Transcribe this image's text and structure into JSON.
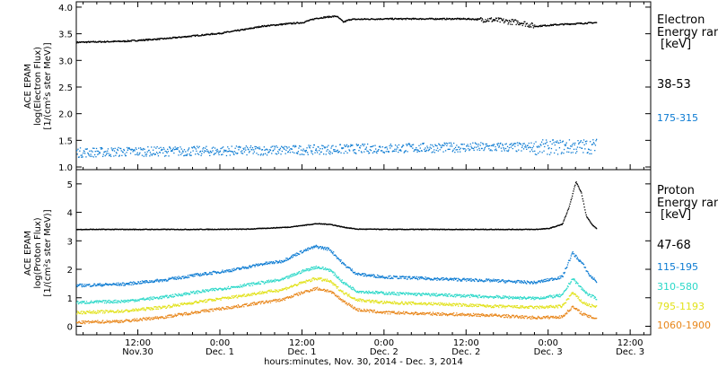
{
  "x_axis": {
    "tick_labels": [
      {
        "time": "12:00",
        "date": "Nov.30",
        "hour": 12
      },
      {
        "time": "0:00",
        "date": "Dec. 1",
        "hour": 24
      },
      {
        "time": "12:00",
        "date": "Dec. 1",
        "hour": 36
      },
      {
        "time": "0:00",
        "date": "Dec. 2",
        "hour": 48
      },
      {
        "time": "12:00",
        "date": "Dec. 2",
        "hour": 60
      },
      {
        "time": "0:00",
        "date": "Dec. 3",
        "hour": 72
      },
      {
        "time": "12:00",
        "date": "Dec. 3",
        "hour": 84
      }
    ],
    "label": "hours:minutes, Nov. 30, 2014 - Dec. 3, 2014",
    "range_hours": [
      3,
      87
    ]
  },
  "electron_panel": {
    "ylabel_line1": "ACE EPAM",
    "ylabel_line2": "log(Electron Flux)",
    "ylabel_line3": "[1/(cm²s ster MeV)]",
    "legend_title_1": "Electron",
    "legend_title_2": "Energy ranges",
    "legend_unit": "[keV]",
    "color_label": "#0a7ad2"
  },
  "proton_panel": {
    "ylabel_line1": "ACE EPAM",
    "ylabel_line2": "log(Proton Flux)",
    "ylabel_line3": "[1/(cm²s ster MeV)]",
    "legend_title_1": "Proton",
    "legend_title_2": "Energy ranges",
    "legend_unit": "[keV]"
  },
  "chart_data": [
    {
      "type": "scatter",
      "xlabel": "hours:minutes, Nov. 30, 2014 - Dec. 3, 2014",
      "ylabel": "log(Electron Flux)",
      "xlim": [
        3,
        87
      ],
      "ylim": [
        0.95,
        4.1
      ],
      "yticks": [
        1.0,
        1.5,
        2.0,
        2.5,
        3.0,
        3.5,
        4.0
      ],
      "ytick_labels": [
        "1.0",
        "1.5",
        "2.0",
        "2.5",
        "3.0",
        "3.5",
        "4.0"
      ],
      "series": [
        {
          "name": "38-53",
          "color": "#000000",
          "x": [
            3,
            10,
            16,
            20,
            24,
            28,
            30,
            34,
            36,
            38,
            40,
            41,
            42,
            43,
            48,
            55,
            60,
            64,
            66,
            68,
            70,
            73,
            76,
            79
          ],
          "y": [
            3.35,
            3.37,
            3.42,
            3.47,
            3.52,
            3.6,
            3.65,
            3.7,
            3.72,
            3.8,
            3.83,
            3.84,
            3.73,
            3.78,
            3.79,
            3.79,
            3.79,
            3.77,
            3.74,
            3.72,
            3.65,
            3.68,
            3.7,
            3.72
          ]
        },
        {
          "name": "175-315",
          "color": "#0a7ad2",
          "x": [
            3,
            12,
            24,
            36,
            48,
            60,
            72,
            79
          ],
          "y": [
            1.28,
            1.3,
            1.31,
            1.33,
            1.36,
            1.38,
            1.38,
            1.4
          ]
        }
      ]
    },
    {
      "type": "scatter",
      "xlabel": "hours:minutes, Nov. 30, 2014 - Dec. 3, 2014",
      "ylabel": "log(Proton Flux)",
      "xlim": [
        3,
        87
      ],
      "ylim": [
        -0.3,
        5.5
      ],
      "yticks": [
        0,
        1,
        2,
        3,
        4,
        5
      ],
      "ytick_labels": [
        "0",
        "1",
        "2",
        "3",
        "4",
        "5"
      ],
      "series": [
        {
          "name": "47-68",
          "color": "#000000",
          "x": [
            3,
            20,
            28,
            34,
            38,
            40,
            42,
            44,
            50,
            60,
            70,
            72,
            74,
            75,
            76,
            76.8,
            77.5,
            78.3,
            79
          ],
          "y": [
            3.42,
            3.42,
            3.43,
            3.5,
            3.62,
            3.6,
            3.5,
            3.43,
            3.42,
            3.42,
            3.42,
            3.45,
            3.6,
            4.2,
            5.1,
            4.7,
            3.9,
            3.6,
            3.45
          ]
        },
        {
          "name": "115-195",
          "color": "#0a7ad2",
          "x": [
            3,
            10,
            16,
            20,
            26,
            30,
            33,
            36,
            38,
            40,
            42,
            44,
            48,
            56,
            64,
            70,
            74,
            75.5,
            77,
            78,
            79
          ],
          "y": [
            1.45,
            1.5,
            1.65,
            1.8,
            2.0,
            2.2,
            2.3,
            2.65,
            2.82,
            2.72,
            2.2,
            1.85,
            1.75,
            1.68,
            1.62,
            1.55,
            1.75,
            2.6,
            2.2,
            1.8,
            1.6
          ]
        },
        {
          "name": "310-580",
          "color": "#2ad8c8",
          "x": [
            3,
            10,
            16,
            20,
            26,
            30,
            33,
            36,
            38,
            40,
            42,
            44,
            48,
            56,
            64,
            70,
            74,
            75.5,
            77,
            78,
            79
          ],
          "y": [
            0.85,
            0.9,
            1.05,
            1.2,
            1.4,
            1.55,
            1.65,
            1.95,
            2.1,
            2.0,
            1.55,
            1.25,
            1.18,
            1.12,
            1.05,
            1.0,
            1.1,
            1.7,
            1.3,
            1.1,
            1.0
          ]
        },
        {
          "name": "795-1193",
          "color": "#e2e21a",
          "x": [
            3,
            10,
            16,
            20,
            26,
            30,
            33,
            36,
            38,
            40,
            42,
            44,
            48,
            56,
            64,
            70,
            74,
            75.5,
            77,
            78,
            79
          ],
          "y": [
            0.5,
            0.55,
            0.7,
            0.85,
            1.05,
            1.2,
            1.3,
            1.55,
            1.7,
            1.6,
            1.2,
            0.95,
            0.85,
            0.8,
            0.72,
            0.68,
            0.72,
            1.2,
            0.85,
            0.75,
            0.7
          ]
        },
        {
          "name": "1060-1900",
          "color": "#e8861a",
          "x": [
            3,
            10,
            16,
            20,
            26,
            30,
            33,
            36,
            38,
            40,
            42,
            44,
            48,
            56,
            64,
            70,
            74,
            75.5,
            77,
            78,
            79
          ],
          "y": [
            0.15,
            0.2,
            0.35,
            0.5,
            0.7,
            0.85,
            0.95,
            1.2,
            1.35,
            1.25,
            0.9,
            0.6,
            0.5,
            0.45,
            0.4,
            0.32,
            0.35,
            0.7,
            0.45,
            0.35,
            0.3
          ]
        }
      ]
    }
  ]
}
